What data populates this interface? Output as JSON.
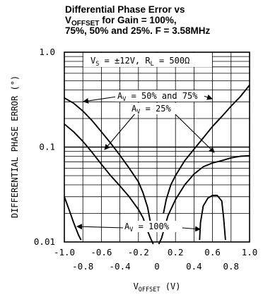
{
  "title": {
    "line1": "Differential Phase Error vs",
    "line2_main": "V",
    "line2_sub": "OFFSET",
    "line2_rest": " for Gain = 100%,",
    "line3": "75%, 50% and 25%. F = 3.58MHz"
  },
  "chart_data": {
    "type": "line",
    "xlabel": {
      "main": "V",
      "sub": "OFFSET",
      "rest": " (V)"
    },
    "ylabel": "DIFFERENTIAL PHASE ERROR (°)",
    "xlim": [
      -1.0,
      1.0
    ],
    "ylim": [
      0.01,
      1.0
    ],
    "yscale": "log",
    "grid": true,
    "x_ticks_upper": [
      "-1.0",
      "-0.6",
      "-0.2",
      "0.2",
      "0.6",
      "1.0"
    ],
    "x_ticks_lower": [
      "-0.8",
      "-0.4",
      "0",
      "0.4",
      "0.8"
    ],
    "x_ticks_upper_values": [
      -1.0,
      -0.6,
      -0.2,
      0.2,
      0.6,
      1.0
    ],
    "x_ticks_lower_values": [
      -0.8,
      -0.4,
      0,
      0.4,
      0.8
    ],
    "y_ticks": [
      "1.0",
      "0.1",
      "0.01"
    ],
    "y_tick_values": [
      1.0,
      0.1,
      0.01
    ],
    "conditions": {
      "vs_main": "V",
      "vs_sub": "S",
      "vs_rest": " = ±12V, R",
      "rl_sub": "L",
      "rl_rest": " = 500Ω"
    },
    "annotations": [
      {
        "main": "A",
        "sub": "V",
        "rest": " = 50% and 75%"
      },
      {
        "main": "A",
        "sub": "V",
        "rest": " = 25%"
      },
      {
        "main": "A",
        "sub": "V",
        "rest": " = 100%"
      }
    ],
    "series": [
      {
        "curves": [
          {
            "x": [
              -1.0,
              -0.9,
              -0.8,
              -0.7,
              -0.6,
              -0.5,
              -0.4,
              -0.3,
              -0.2,
              -0.15,
              -0.1,
              -0.07
            ],
            "y": [
              0.33,
              0.29,
              0.24,
              0.19,
              0.145,
              0.11,
              0.082,
              0.06,
              0.043,
              0.033,
              0.023,
              0.016
            ]
          },
          {
            "x": [
              0.07,
              0.1,
              0.15,
              0.2,
              0.3,
              0.4,
              0.5,
              0.6,
              0.7,
              0.8,
              0.9,
              1.0
            ],
            "y": [
              0.02,
              0.028,
              0.04,
              0.05,
              0.072,
              0.095,
              0.125,
              0.165,
              0.21,
              0.27,
              0.34,
              0.45
            ]
          }
        ]
      },
      {
        "curves": [
          {
            "x": [
              -1.0,
              -0.9,
              -0.8,
              -0.7,
              -0.6,
              -0.5,
              -0.4,
              -0.3,
              -0.2,
              -0.15,
              -0.1,
              -0.07,
              -0.04
            ],
            "y": [
              0.175,
              0.145,
              0.115,
              0.088,
              0.066,
              0.05,
              0.039,
              0.03,
              0.022,
              0.018,
              0.013,
              0.011,
              0.0095
            ]
          },
          {
            "x": [
              0.02,
              0.05,
              0.08,
              0.12,
              0.2,
              0.3,
              0.4,
              0.5,
              0.6,
              0.7,
              0.8,
              0.9,
              1.0
            ],
            "y": [
              0.0095,
              0.011,
              0.014,
              0.019,
              0.028,
              0.04,
              0.052,
              0.062,
              0.068,
              0.072,
              0.077,
              0.08,
              0.081
            ]
          }
        ]
      },
      {
        "curves": [
          {
            "x": [
              -1.0,
              -0.95,
              -0.9,
              -0.85,
              -0.82
            ],
            "y": [
              0.03,
              0.022,
              0.016,
              0.012,
              0.0105
            ]
          },
          {
            "x": [
              0.46,
              0.47,
              0.5,
              0.55,
              0.6,
              0.65,
              0.7,
              0.72,
              0.74
            ],
            "y": [
              0.0105,
              0.016,
              0.024,
              0.029,
              0.031,
              0.031,
              0.027,
              0.018,
              0.0105
            ]
          }
        ]
      }
    ]
  }
}
